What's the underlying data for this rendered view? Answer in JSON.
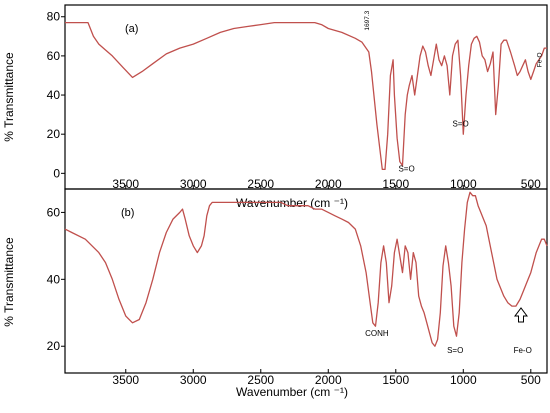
{
  "colors": {
    "spectrum": "#c0504d",
    "axis": "#000000"
  },
  "chart_data": [
    {
      "panel": "(a)",
      "type": "line",
      "xlabel": "Wavenumber (cm ⁻¹)",
      "ylabel": "% Transmittance",
      "x_reversed": true,
      "xlim": [
        3950,
        380
      ],
      "ylim": [
        -8,
        86
      ],
      "xticks": [
        3500,
        3000,
        2500,
        2000,
        1500,
        1000,
        500
      ],
      "yticks": [
        0,
        20,
        40,
        60,
        80
      ],
      "grid": false,
      "series": [
        {
          "x": [
            3950,
            3780,
            3740,
            3700,
            3650,
            3600,
            3520,
            3450,
            3380,
            3300,
            3200,
            3100,
            3000,
            2900,
            2800,
            2700,
            2600,
            2500,
            2400,
            2300,
            2200,
            2100,
            2050,
            2000,
            1900,
            1800,
            1750,
            1700,
            1680,
            1640,
            1600,
            1580,
            1560,
            1540,
            1520,
            1510,
            1490,
            1470,
            1450,
            1430,
            1415,
            1400,
            1380,
            1360,
            1340,
            1320,
            1300,
            1280,
            1260,
            1240,
            1220,
            1200,
            1180,
            1160,
            1140,
            1120,
            1100,
            1080,
            1060,
            1040,
            1020,
            1000,
            980,
            960,
            940,
            920,
            900,
            880,
            860,
            840,
            820,
            800,
            780,
            760,
            740,
            720,
            700,
            680,
            650,
            620,
            600,
            580,
            560,
            540,
            520,
            500,
            480,
            460,
            440,
            420,
            400,
            380
          ],
          "y": [
            77,
            77,
            70,
            66,
            63,
            60,
            54,
            49,
            52,
            56,
            61,
            64,
            66,
            69,
            72,
            74,
            75,
            76,
            77,
            77,
            77,
            77,
            76,
            74,
            72,
            69,
            67,
            62,
            52,
            25,
            2,
            2,
            20,
            50,
            58,
            40,
            18,
            6,
            4,
            30,
            40,
            45,
            50,
            40,
            50,
            60,
            65,
            62,
            55,
            50,
            58,
            66,
            58,
            55,
            60,
            55,
            40,
            60,
            66,
            68,
            50,
            20,
            40,
            55,
            66,
            69,
            70,
            67,
            60,
            58,
            52,
            56,
            62,
            30,
            45,
            66,
            68,
            68,
            62,
            55,
            50,
            52,
            55,
            58,
            52,
            48,
            52,
            56,
            58,
            60,
            64,
            64
          ]
        }
      ],
      "annotations": [
        {
          "text": "1697.3",
          "x": 1697,
          "y": 78
        },
        {
          "text": "S=O",
          "x": 1420,
          "y": 1
        },
        {
          "text": "S=O",
          "x": 1020,
          "y": 24
        },
        {
          "text": "Fe-O",
          "x": 420,
          "y": 58
        }
      ]
    },
    {
      "panel": "(b)",
      "type": "line",
      "xlabel": "Wavenumber (cm ⁻¹)",
      "ylabel": "% Transmittance",
      "x_reversed": true,
      "xlim": [
        3950,
        380
      ],
      "ylim": [
        12,
        67
      ],
      "xticks": [
        3500,
        3000,
        2500,
        2000,
        1500,
        1000,
        500
      ],
      "yticks": [
        20,
        40,
        60
      ],
      "grid": false,
      "series": [
        {
          "x": [
            3950,
            3900,
            3800,
            3700,
            3650,
            3600,
            3550,
            3500,
            3450,
            3400,
            3350,
            3300,
            3250,
            3200,
            3150,
            3100,
            3080,
            3060,
            3030,
            3000,
            2970,
            2940,
            2920,
            2900,
            2880,
            2860,
            2800,
            2750,
            2700,
            2600,
            2500,
            2450,
            2400,
            2350,
            2300,
            2250,
            2200,
            2150,
            2100,
            2050,
            2000,
            1950,
            1900,
            1850,
            1800,
            1760,
            1720,
            1690,
            1670,
            1650,
            1630,
            1610,
            1590,
            1570,
            1550,
            1530,
            1510,
            1490,
            1470,
            1450,
            1430,
            1410,
            1390,
            1370,
            1350,
            1330,
            1310,
            1290,
            1270,
            1250,
            1230,
            1210,
            1190,
            1170,
            1150,
            1130,
            1110,
            1090,
            1070,
            1050,
            1030,
            1010,
            990,
            970,
            950,
            930,
            910,
            890,
            870,
            850,
            830,
            810,
            790,
            770,
            750,
            730,
            700,
            670,
            640,
            610,
            580,
            560,
            540,
            520,
            500,
            480,
            460,
            440,
            420,
            400,
            380
          ],
          "y": [
            55,
            54,
            52,
            48,
            45,
            40,
            34,
            29,
            27,
            28,
            33,
            40,
            48,
            54,
            58,
            60,
            61,
            58,
            53,
            50,
            48,
            50,
            53,
            59,
            62,
            63,
            63,
            63,
            63,
            63,
            63,
            63,
            63,
            63,
            62,
            62,
            62,
            62,
            61,
            61,
            60,
            59,
            58,
            57,
            55,
            50,
            42,
            33,
            27,
            26,
            33,
            45,
            50,
            45,
            33,
            38,
            48,
            52,
            47,
            42,
            50,
            48,
            40,
            48,
            45,
            35,
            32,
            30,
            27,
            24,
            21,
            20,
            22,
            30,
            44,
            50,
            45,
            38,
            26,
            23,
            30,
            45,
            55,
            63,
            66,
            65,
            65,
            62,
            60,
            58,
            56,
            52,
            48,
            44,
            40,
            38,
            35,
            33,
            32,
            32,
            34,
            36,
            38,
            40,
            42,
            45,
            48,
            50,
            52,
            52,
            50
          ]
        }
      ],
      "annotations": [
        {
          "text": "CONH",
          "x": 1640,
          "y": 23
        },
        {
          "text": "S=O",
          "x": 1060,
          "y": 18
        },
        {
          "text": "Fe-O",
          "x": 560,
          "y": 18
        }
      ]
    }
  ]
}
